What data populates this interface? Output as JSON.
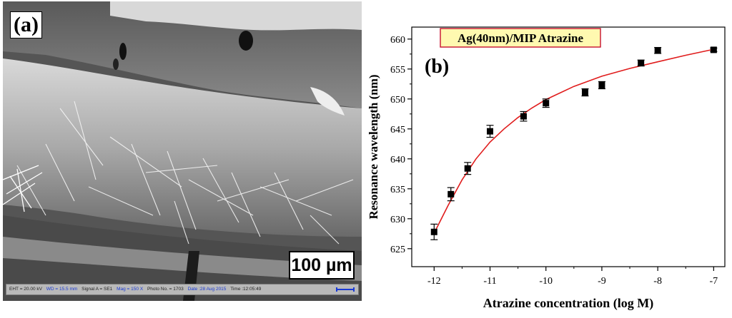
{
  "panel_a": {
    "label": "(a)",
    "scale_bar": "100 µm",
    "info_bar": {
      "eht": "EHT = 20.00 kV",
      "wd": "WD = 15.5 mm",
      "signal": "Signal A = SE1",
      "mag": "Mag = 150 X",
      "photo": "Photo No. = 1703",
      "date": "Date :28 Aug 2015",
      "time": "Time :12:05:49"
    }
  },
  "panel_b": {
    "label": "(b)"
  },
  "chart_data": {
    "type": "scatter",
    "title": "Ag(40nm)/MIP Atrazine",
    "xlabel": "Atrazine concentration (log M)",
    "ylabel": "Resonance wavelength (nm)",
    "xlim": [
      -12.4,
      -6.8
    ],
    "ylim": [
      622,
      662
    ],
    "xticks": [
      -12,
      -11,
      -10,
      -9,
      -8,
      -7
    ],
    "yticks": [
      625,
      630,
      635,
      640,
      645,
      650,
      655,
      660
    ],
    "series": [
      {
        "points": [
          {
            "x": -12.0,
            "y": 627.8,
            "err": 1.3
          },
          {
            "x": -11.7,
            "y": 634.1,
            "err": 1.1
          },
          {
            "x": -11.4,
            "y": 638.4,
            "err": 1.0
          },
          {
            "x": -11.0,
            "y": 644.6,
            "err": 1.0
          },
          {
            "x": -10.4,
            "y": 647.1,
            "err": 0.8
          },
          {
            "x": -10.0,
            "y": 649.3,
            "err": 0.7
          },
          {
            "x": -9.3,
            "y": 651.1,
            "err": 0.6
          },
          {
            "x": -9.0,
            "y": 652.3,
            "err": 0.6
          },
          {
            "x": -8.3,
            "y": 656.0,
            "err": 0.5
          },
          {
            "x": -8.0,
            "y": 658.1,
            "err": 0.5
          },
          {
            "x": -7.0,
            "y": 658.2,
            "err": 0.3
          }
        ],
        "color": "#000000"
      }
    ],
    "fit_curve": {
      "color": "#e01c1c",
      "points": [
        {
          "x": -12.0,
          "y": 627.6
        },
        {
          "x": -11.75,
          "y": 632.2
        },
        {
          "x": -11.5,
          "y": 636.5
        },
        {
          "x": -11.25,
          "y": 640.0
        },
        {
          "x": -11.0,
          "y": 642.8
        },
        {
          "x": -10.75,
          "y": 645.0
        },
        {
          "x": -10.5,
          "y": 646.9
        },
        {
          "x": -10.25,
          "y": 648.5
        },
        {
          "x": -10.0,
          "y": 649.9
        },
        {
          "x": -9.5,
          "y": 652.1
        },
        {
          "x": -9.0,
          "y": 653.8
        },
        {
          "x": -8.5,
          "y": 655.1
        },
        {
          "x": -8.0,
          "y": 656.2
        },
        {
          "x": -7.5,
          "y": 657.3
        },
        {
          "x": -7.0,
          "y": 658.3
        }
      ]
    },
    "grid": false
  }
}
